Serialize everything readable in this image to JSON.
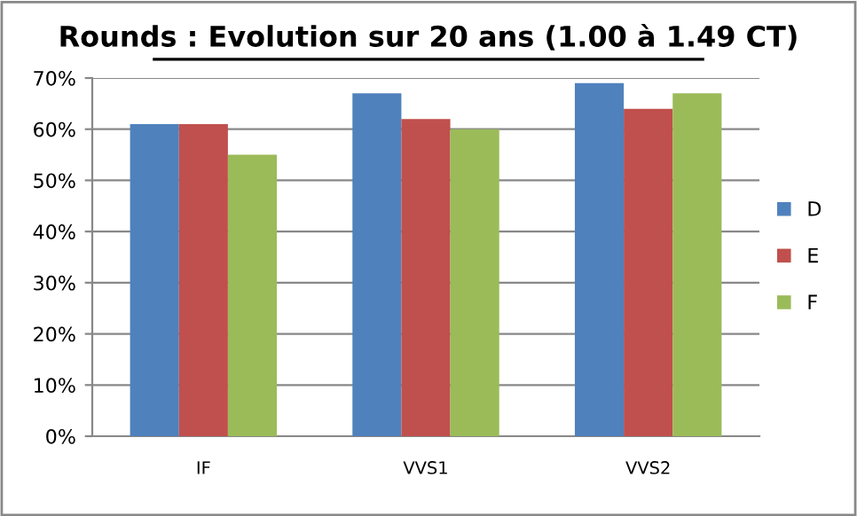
{
  "chart_data": {
    "type": "bar",
    "title": "Rounds : Evolution sur 20 ans (1.00 à 1.49 CT)",
    "categories": [
      "IF",
      "VVS1",
      "VVS2"
    ],
    "series": [
      {
        "name": "D",
        "color": "#4f81bd",
        "values": [
          61,
          67,
          69
        ]
      },
      {
        "name": "E",
        "color": "#c0504d",
        "values": [
          61,
          62,
          64
        ]
      },
      {
        "name": "F",
        "color": "#9bbb59",
        "values": [
          55,
          60,
          67
        ]
      }
    ],
    "ylim": [
      0,
      70
    ],
    "yticks": [
      {
        "value": 0,
        "label": "0%"
      },
      {
        "value": 10,
        "label": "10%"
      },
      {
        "value": 20,
        "label": "20%"
      },
      {
        "value": 30,
        "label": "30%"
      },
      {
        "value": 40,
        "label": "40%"
      },
      {
        "value": 50,
        "label": "50%"
      },
      {
        "value": 60,
        "label": "60%"
      },
      {
        "value": 70,
        "label": "70%"
      }
    ],
    "grid": "y",
    "legend": "right"
  }
}
